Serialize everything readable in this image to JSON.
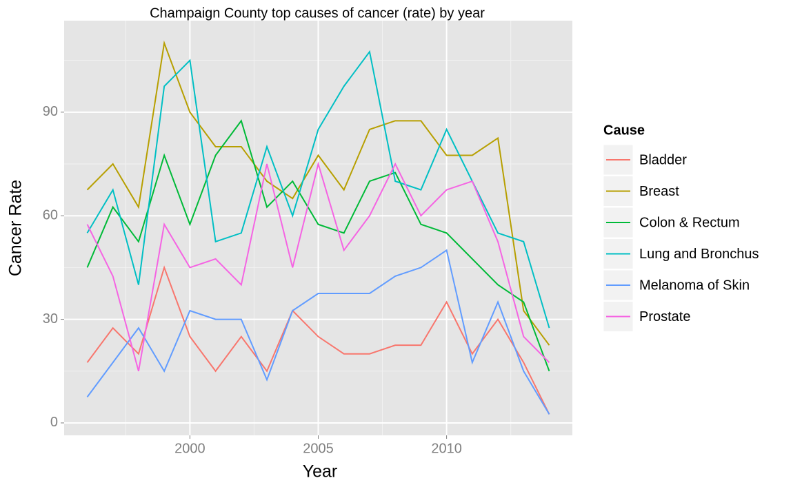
{
  "chart_data": {
    "type": "line",
    "title": "Champaign County top causes of cancer (rate) by year",
    "x_label": "Year",
    "y_label": "Cancer Rate",
    "legend_title": "Cause",
    "x": [
      1996,
      1997,
      1998,
      1999,
      2000,
      2001,
      2002,
      2003,
      2004,
      2005,
      2006,
      2007,
      2008,
      2009,
      2010,
      2011,
      2012,
      2013,
      2014
    ],
    "series": [
      {
        "name": "Bladder",
        "color": "#F8766D",
        "values": [
          17.5,
          27.5,
          20,
          45,
          25,
          15,
          25,
          15,
          32.5,
          25,
          20,
          20,
          22.5,
          22.5,
          35,
          20,
          30,
          17.5,
          2.5
        ]
      },
      {
        "name": "Breast",
        "color": "#B79F00",
        "values": [
          67.5,
          75,
          62.5,
          110,
          90,
          80,
          80,
          70,
          65,
          77.5,
          67.5,
          85,
          87.5,
          87.5,
          77.5,
          77.5,
          82.5,
          32.5,
          22.5
        ]
      },
      {
        "name": "Colon & Rectum",
        "color": "#00BA38",
        "values": [
          45,
          62.5,
          52.5,
          77.5,
          57.5,
          77.5,
          87.5,
          62.5,
          70,
          57.5,
          55,
          70,
          72.5,
          57.5,
          55,
          47.5,
          40,
          35,
          15
        ]
      },
      {
        "name": "Lung and Bronchus",
        "color": "#00BFC4",
        "values": [
          55,
          67.5,
          40,
          97.5,
          105,
          52.5,
          55,
          80,
          60,
          85,
          97.5,
          107.5,
          70,
          67.5,
          85,
          70,
          55,
          52.5,
          27.5
        ]
      },
      {
        "name": "Melanoma of Skin",
        "color": "#619CFF",
        "values": [
          7.5,
          17.5,
          27.5,
          15,
          32.5,
          30,
          30,
          12.5,
          32.5,
          37.5,
          37.5,
          37.5,
          42.5,
          45,
          50,
          17.5,
          35,
          15,
          2.5
        ]
      },
      {
        "name": "Prostate",
        "color": "#F564E3",
        "values": [
          57.5,
          42.5,
          15,
          57.5,
          45,
          47.5,
          40,
          75,
          45,
          75,
          50,
          60,
          75,
          60,
          67.5,
          70,
          52.5,
          25,
          17.5
        ]
      }
    ],
    "xlim": [
      1995.1,
      2014.9
    ],
    "xticks": [
      2000,
      2005,
      2010
    ],
    "xminor_ticks": [
      1997.5,
      2002.5,
      2007.5,
      2012.5
    ],
    "ylim": [
      -3.6,
      116.5
    ],
    "yticks": [
      0,
      30,
      60,
      90
    ],
    "yminor_ticks": [
      15,
      45,
      75,
      105
    ],
    "grid": true,
    "legend_position": "right"
  }
}
